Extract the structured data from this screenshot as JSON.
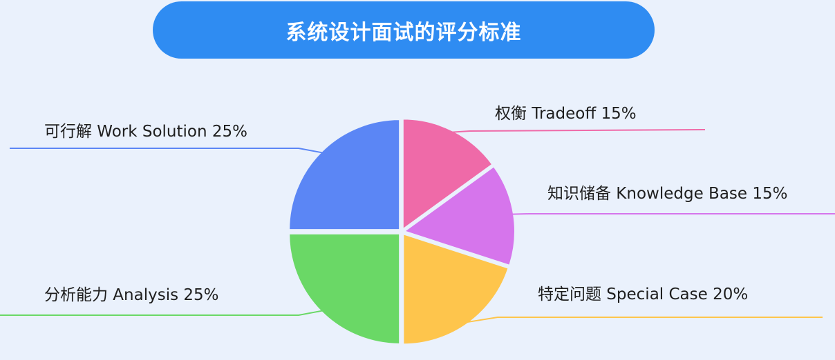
{
  "header": {
    "title": "系统设计面试的评分标准"
  },
  "chart_data": {
    "type": "pie",
    "title": "系统设计面试的评分标准",
    "slices": [
      {
        "label": "权衡 Tradeoff 15%",
        "value": 15,
        "color": "#ef6aa8"
      },
      {
        "label": "知识储备 Knowledge Base 15%",
        "value": 15,
        "color": "#d675ec"
      },
      {
        "label": "特定问题 Special Case 20%",
        "value": 20,
        "color": "#fec54c"
      },
      {
        "label": "分析能力 Analysis 25%",
        "value": 25,
        "color": "#6ad866"
      },
      {
        "label": "可行解 Work Solution 25%",
        "value": 25,
        "color": "#5b86f5"
      }
    ]
  },
  "colors": {
    "background": "#eaf1fc",
    "title_bar": "#2f8cf2",
    "title_text": "#ffffff"
  }
}
